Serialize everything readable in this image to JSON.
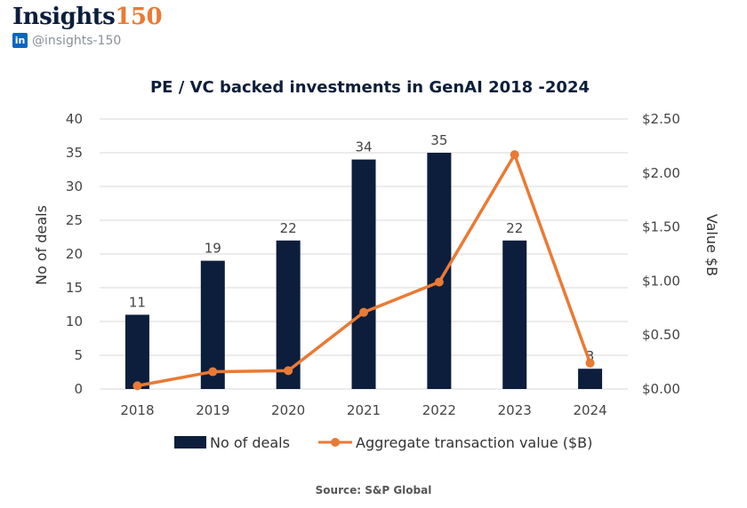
{
  "header": {
    "brand_text": "Insights",
    "brand_number": "150",
    "linkedin_glyph": "in",
    "handle": "@insights-150"
  },
  "colors": {
    "bar": "#0c1e3c",
    "line": "#e97a35",
    "grid": "#d9d9d9"
  },
  "source": "Source: S&P Global",
  "chart_data": {
    "type": "bar",
    "title": "PE / VC backed investments in GenAI 2018 -2024",
    "categories": [
      "2018",
      "2019",
      "2020",
      "2021",
      "2022",
      "2023",
      "2024"
    ],
    "ylabel": "No of deals",
    "y2label": "Value $B",
    "ylim": [
      0,
      40
    ],
    "y_ticks": [
      "0",
      "5",
      "10",
      "15",
      "20",
      "25",
      "30",
      "35",
      "40"
    ],
    "y2lim": [
      0,
      2.5
    ],
    "y2_ticks": [
      "$0.00",
      "$0.50",
      "$1.00",
      "$1.50",
      "$2.00",
      "$2.50"
    ],
    "grid": true,
    "legend_position": "bottom",
    "series": [
      {
        "name": "No of deals",
        "type": "bar",
        "axis": "left",
        "values": [
          11,
          19,
          22,
          34,
          35,
          22,
          3
        ],
        "labels": [
          "11",
          "19",
          "22",
          "34",
          "35",
          "22",
          "3"
        ]
      },
      {
        "name": "Aggregate transaction value ($B)",
        "type": "line",
        "axis": "right",
        "values": [
          0.03,
          0.16,
          0.17,
          0.71,
          0.99,
          2.17,
          0.24
        ]
      }
    ]
  }
}
